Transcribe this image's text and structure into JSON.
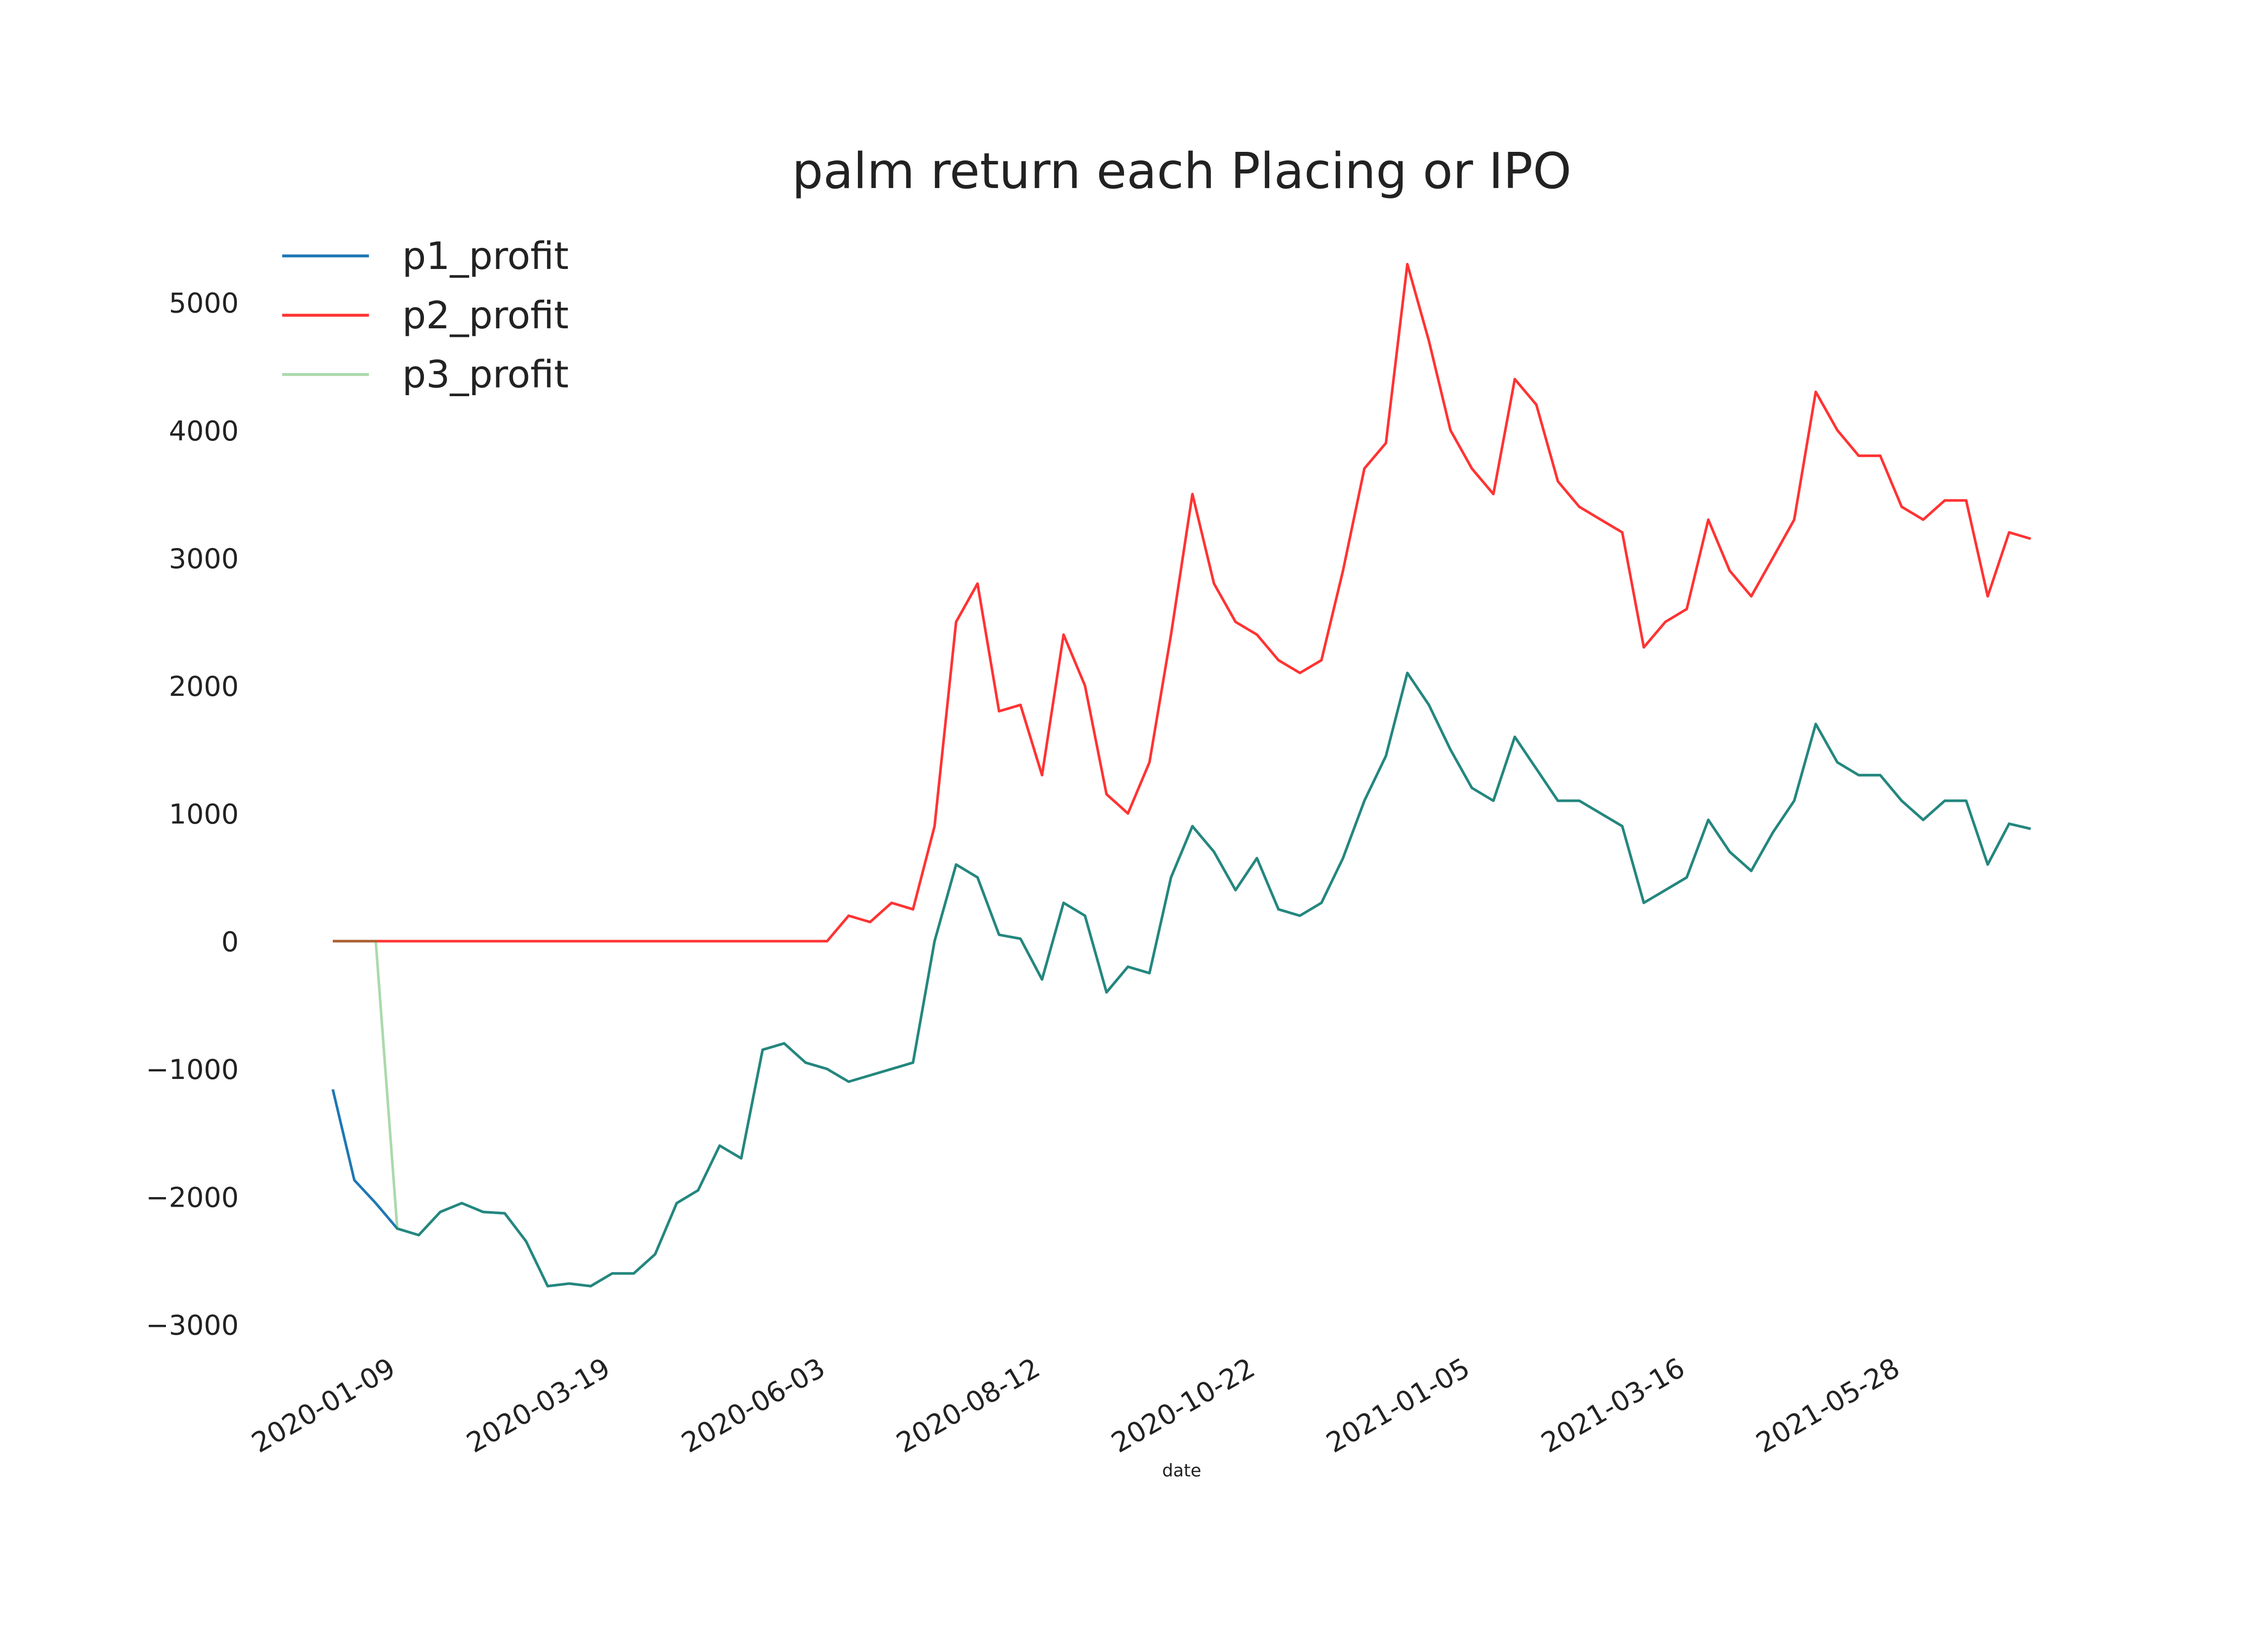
{
  "chart_data": {
    "type": "line",
    "title": "palm return each Placing or IPO",
    "xlabel": "date",
    "categories": [
      null,
      null,
      null,
      "2020-01-09",
      null,
      null,
      null,
      null,
      null,
      null,
      null,
      null,
      null,
      "2020-03-19",
      null,
      null,
      null,
      null,
      null,
      null,
      null,
      null,
      null,
      "2020-06-03",
      null,
      null,
      null,
      null,
      null,
      null,
      null,
      null,
      null,
      "2020-08-12",
      null,
      null,
      null,
      null,
      null,
      null,
      null,
      null,
      null,
      "2020-10-22",
      null,
      null,
      null,
      null,
      null,
      null,
      null,
      null,
      null,
      "2021-01-05",
      null,
      null,
      null,
      null,
      null,
      null,
      null,
      null,
      null,
      "2021-03-16",
      null,
      null,
      null,
      null,
      null,
      null,
      null,
      null,
      null,
      "2021-05-28",
      null,
      null,
      null,
      null,
      null,
      null
    ],
    "series": [
      {
        "name": "p1_profit",
        "color": "#1f77b4",
        "alpha": 1,
        "values": [
          -1160,
          -1870,
          -2050,
          -2250,
          -2300,
          -2120,
          -2050,
          -2120,
          -2130,
          -2350,
          -2700,
          -2680,
          -2700,
          -2600,
          -2600,
          -2450,
          -2050,
          -1950,
          -1600,
          -1700,
          -850,
          -800,
          -950,
          -1000,
          -1100,
          -1050,
          -1000,
          -950,
          0,
          600,
          500,
          50,
          20,
          -300,
          300,
          200,
          -400,
          -200,
          -250,
          500,
          900,
          700,
          400,
          650,
          250,
          200,
          300,
          650,
          1100,
          1450,
          2100,
          1850,
          1500,
          1200,
          1100,
          1600,
          1350,
          1100,
          1100,
          1000,
          900,
          300,
          400,
          500,
          950,
          700,
          550,
          850,
          1100,
          1700,
          1400,
          1300,
          1300,
          1100,
          950,
          1100,
          1100,
          600,
          920,
          880
        ]
      },
      {
        "name": "p2_profit",
        "color": "#ff3333",
        "alpha": 1,
        "values": [
          0,
          0,
          0,
          0,
          0,
          0,
          0,
          0,
          0,
          0,
          0,
          0,
          0,
          0,
          0,
          0,
          0,
          0,
          0,
          0,
          0,
          0,
          0,
          0,
          200,
          150,
          300,
          250,
          900,
          2500,
          2800,
          1800,
          1850,
          1300,
          2400,
          2000,
          1150,
          1000,
          1400,
          2400,
          3500,
          2800,
          2500,
          2400,
          2200,
          2100,
          2200,
          2900,
          3700,
          3900,
          5300,
          4700,
          4000,
          3700,
          3500,
          4400,
          4200,
          3600,
          3400,
          3300,
          3200,
          2300,
          2500,
          2600,
          3300,
          2900,
          2700,
          3000,
          3300,
          4300,
          4000,
          3800,
          3800,
          3400,
          3300,
          3450,
          3450,
          2700,
          3200,
          3150
        ]
      },
      {
        "name": "p3_profit",
        "color": "#2ca02c",
        "alpha": 0.4,
        "values": [
          0,
          0,
          0,
          -2250,
          -2300,
          -2120,
          -2050,
          -2120,
          -2130,
          -2350,
          -2700,
          -2680,
          -2700,
          -2600,
          -2600,
          -2450,
          -2050,
          -1950,
          -1600,
          -1700,
          -850,
          -800,
          -950,
          -1000,
          -1100,
          -1050,
          -1000,
          -950,
          0,
          600,
          500,
          50,
          20,
          -300,
          300,
          200,
          -400,
          -200,
          -250,
          500,
          900,
          700,
          400,
          650,
          250,
          200,
          300,
          650,
          1100,
          1450,
          2100,
          1850,
          1500,
          1200,
          1100,
          1600,
          1350,
          1100,
          1100,
          1000,
          900,
          300,
          400,
          500,
          950,
          700,
          550,
          850,
          1100,
          1700,
          1400,
          1300,
          1300,
          1100,
          950,
          1100,
          1100,
          600,
          920,
          880
        ]
      }
    ],
    "ylim": [
      -3000,
      5500
    ],
    "yticks": [
      -3000,
      -2000,
      -1000,
      0,
      1000,
      2000,
      3000,
      4000,
      5000
    ],
    "ytick_labels": [
      "−3000",
      "−2000",
      "−1000",
      "0",
      "1000",
      "2000",
      "3000",
      "4000",
      "5000"
    ],
    "grid": false,
    "legend": "upper left"
  }
}
